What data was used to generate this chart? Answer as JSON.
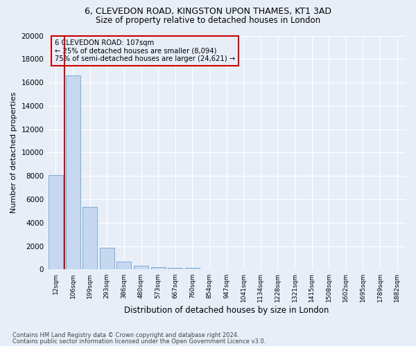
{
  "title_line1": "6, CLEVEDON ROAD, KINGSTON UPON THAMES, KT1 3AD",
  "title_line2": "Size of property relative to detached houses in London",
  "xlabel": "Distribution of detached houses by size in London",
  "ylabel": "Number of detached properties",
  "bar_color": "#c5d8f0",
  "bar_edge_color": "#7aadd4",
  "annotation_box_color": "#cc0000",
  "annotation_line1": "6 CLEVEDON ROAD: 107sqm",
  "annotation_line2": "← 25% of detached houses are smaller (8,094)",
  "annotation_line3": "75% of semi-detached houses are larger (24,621) →",
  "footer_line1": "Contains HM Land Registry data © Crown copyright and database right 2024.",
  "footer_line2": "Contains public sector information licensed under the Open Government Licence v3.0.",
  "categories": [
    "12sqm",
    "106sqm",
    "199sqm",
    "293sqm",
    "386sqm",
    "480sqm",
    "573sqm",
    "667sqm",
    "760sqm",
    "854sqm",
    "947sqm",
    "1041sqm",
    "1134sqm",
    "1228sqm",
    "1321sqm",
    "1415sqm",
    "1508sqm",
    "1602sqm",
    "1695sqm",
    "1789sqm",
    "1882sqm"
  ],
  "values": [
    8094,
    16600,
    5350,
    1870,
    680,
    330,
    210,
    175,
    145,
    0,
    0,
    0,
    0,
    0,
    0,
    0,
    0,
    0,
    0,
    0,
    0
  ],
  "ylim": [
    0,
    20000
  ],
  "yticks": [
    0,
    2000,
    4000,
    6000,
    8000,
    10000,
    12000,
    14000,
    16000,
    18000,
    20000
  ],
  "vline_x": 0.5,
  "bg_color": "#e8eef8",
  "grid_color": "#ffffff",
  "grid_alpha": 1.0
}
